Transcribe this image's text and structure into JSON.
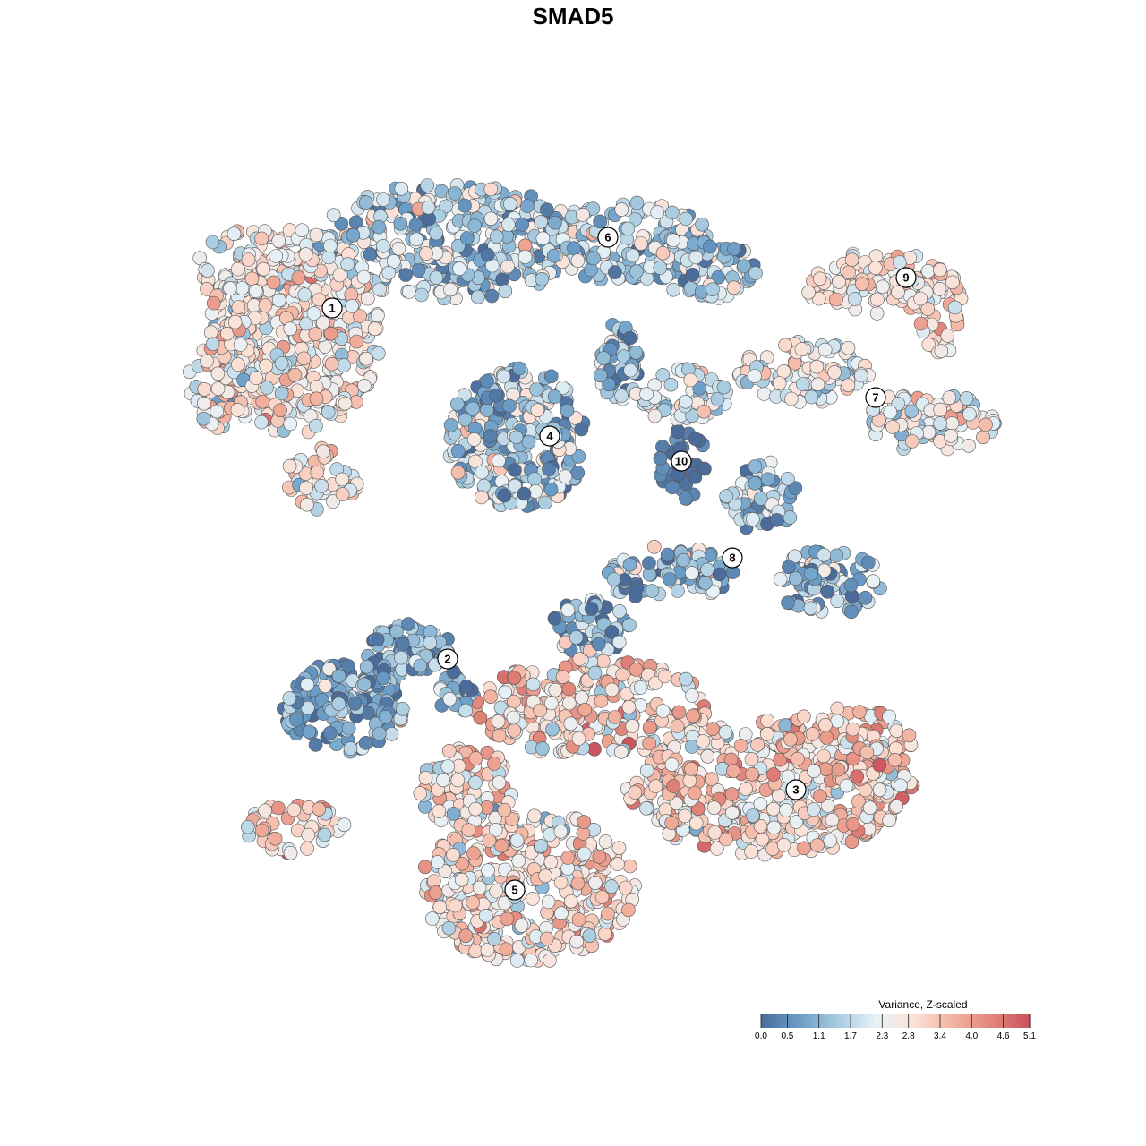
{
  "chart_data": {
    "type": "scatter",
    "title": "SMAD5",
    "legend": {
      "title": "Variance, Z-scaled",
      "placement": "bottom-right",
      "ticks": [
        "0.0",
        "0.5",
        "1.1",
        "1.7",
        "2.3",
        "2.8",
        "3.4",
        "4.0",
        "4.6",
        "5.1"
      ],
      "range": [
        0.0,
        5.1
      ],
      "colors": [
        "#4b6c9a",
        "#6a9dc8",
        "#a7cbe0",
        "#e8f1f6",
        "#fbe1d6",
        "#f3b3a0",
        "#e1867a",
        "#c9525e"
      ]
    },
    "clusters": [
      {
        "label": "1",
        "level": 2.6,
        "spread": 0.7,
        "n": 620
      },
      {
        "label": "6",
        "level": 1.6,
        "spread": 0.8,
        "n": 560
      },
      {
        "label": "9",
        "level": 2.7,
        "spread": 0.5,
        "n": 150
      },
      {
        "label": "7",
        "level": 2.3,
        "spread": 0.7,
        "n": 260
      },
      {
        "label": "4",
        "level": 1.4,
        "spread": 0.9,
        "n": 330
      },
      {
        "label": "10",
        "level": 0.3,
        "spread": 0.3,
        "n": 45
      },
      {
        "label": "8",
        "level": 1.2,
        "spread": 0.9,
        "n": 300
      },
      {
        "label": "2",
        "level": 0.9,
        "spread": 0.7,
        "n": 260
      },
      {
        "label": "3",
        "level": 3.0,
        "spread": 0.8,
        "n": 760
      },
      {
        "label": "5",
        "level": 2.9,
        "spread": 0.8,
        "n": 520
      }
    ]
  }
}
